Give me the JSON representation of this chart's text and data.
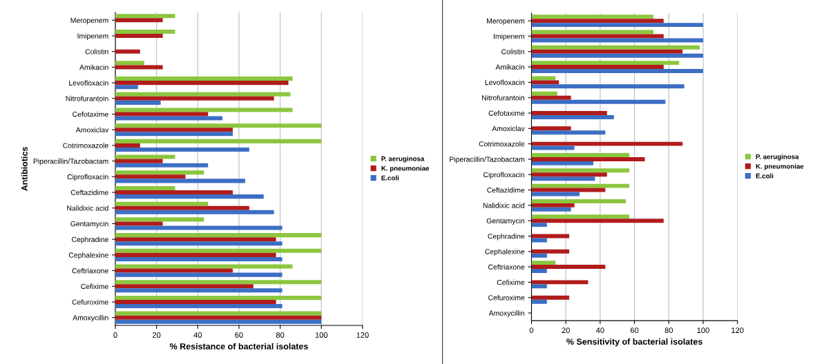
{
  "chart_data": [
    {
      "type": "bar",
      "orientation": "horizontal",
      "ylabel": "Antibiotics",
      "xlabel": "% Resistance of bacterial isolates",
      "categories": [
        "Meropenem",
        "Imipenem",
        "Colistin",
        "Amikacin",
        "Levofloxacin",
        "Nitrofurantoin",
        "Cefotaxime",
        "Amoxiclav",
        "Cotrimoxazole",
        "Piperacillin/Tazobactam",
        "Ciprofloxacin",
        "Ceftazidime",
        "Nalidixic acid",
        "Gentamycin",
        "Cephradine",
        "Cephalexine",
        "Ceftriaxone",
        "Cefixime",
        "Cefuroxime",
        "Amoxycillin"
      ],
      "series": [
        {
          "name": "P. aeruginosa",
          "color": "#8cc63f",
          "values": [
            29,
            29,
            null,
            14,
            86,
            85,
            86,
            100,
            100,
            29,
            43,
            29,
            45,
            43,
            100,
            100,
            86,
            100,
            100,
            100
          ]
        },
        {
          "name": "K. pneumoniae",
          "color": "#b01c1c",
          "values": [
            23,
            23,
            12,
            23,
            84,
            77,
            45,
            57,
            12,
            23,
            34,
            57,
            65,
            23,
            78,
            78,
            57,
            67,
            78,
            100
          ]
        },
        {
          "name": "E.coli",
          "color": "#3c6ec4",
          "values": [
            null,
            null,
            null,
            null,
            11,
            22,
            52,
            57,
            65,
            45,
            63,
            72,
            77,
            81,
            81,
            81,
            81,
            81,
            81,
            100
          ]
        }
      ],
      "xlim": [
        0,
        120
      ],
      "xticks": [
        0,
        20,
        40,
        60,
        80,
        100,
        120
      ],
      "grid": "x",
      "legend": "right"
    },
    {
      "type": "bar",
      "orientation": "horizontal",
      "xlabel": "% Sensitivity of bacterial isolates",
      "categories": [
        "Meropenem",
        "Imipenem",
        "Colistin",
        "Amikacin",
        "Levofloxacin",
        "Nitrofurantoin",
        "Cefotaxime",
        "Amoxiclav",
        "Cotrimoxazole",
        "Piperacillin/Tazobactam",
        "Ciprofloxacin",
        "Ceftazidime",
        "Nalidixic acid",
        "Gentamycin",
        "Cephradine",
        "Cephalexine",
        "Ceftriaxone",
        "Cefixime",
        "Cefuroxime",
        "Amoxycillin"
      ],
      "series": [
        {
          "name": "P. aeruginosa",
          "color": "#8cc63f",
          "values": [
            71,
            71,
            98,
            86,
            14,
            15,
            null,
            null,
            null,
            57,
            57,
            57,
            55,
            57,
            null,
            null,
            14,
            null,
            null,
            null
          ]
        },
        {
          "name": "K. pneumoniae",
          "color": "#b01c1c",
          "values": [
            77,
            77,
            88,
            77,
            16,
            23,
            44,
            23,
            88,
            66,
            44,
            43,
            25,
            77,
            22,
            22,
            43,
            33,
            22,
            null
          ]
        },
        {
          "name": "E.coli",
          "color": "#3c6ec4",
          "values": [
            100,
            100,
            100,
            100,
            89,
            78,
            48,
            43,
            25,
            36,
            37,
            28,
            23,
            9,
            9,
            9,
            9,
            9,
            9,
            null
          ]
        }
      ],
      "xlim": [
        0,
        120
      ],
      "xticks": [
        0,
        20,
        40,
        60,
        80,
        100,
        120
      ],
      "grid": "x",
      "legend": "right"
    }
  ]
}
